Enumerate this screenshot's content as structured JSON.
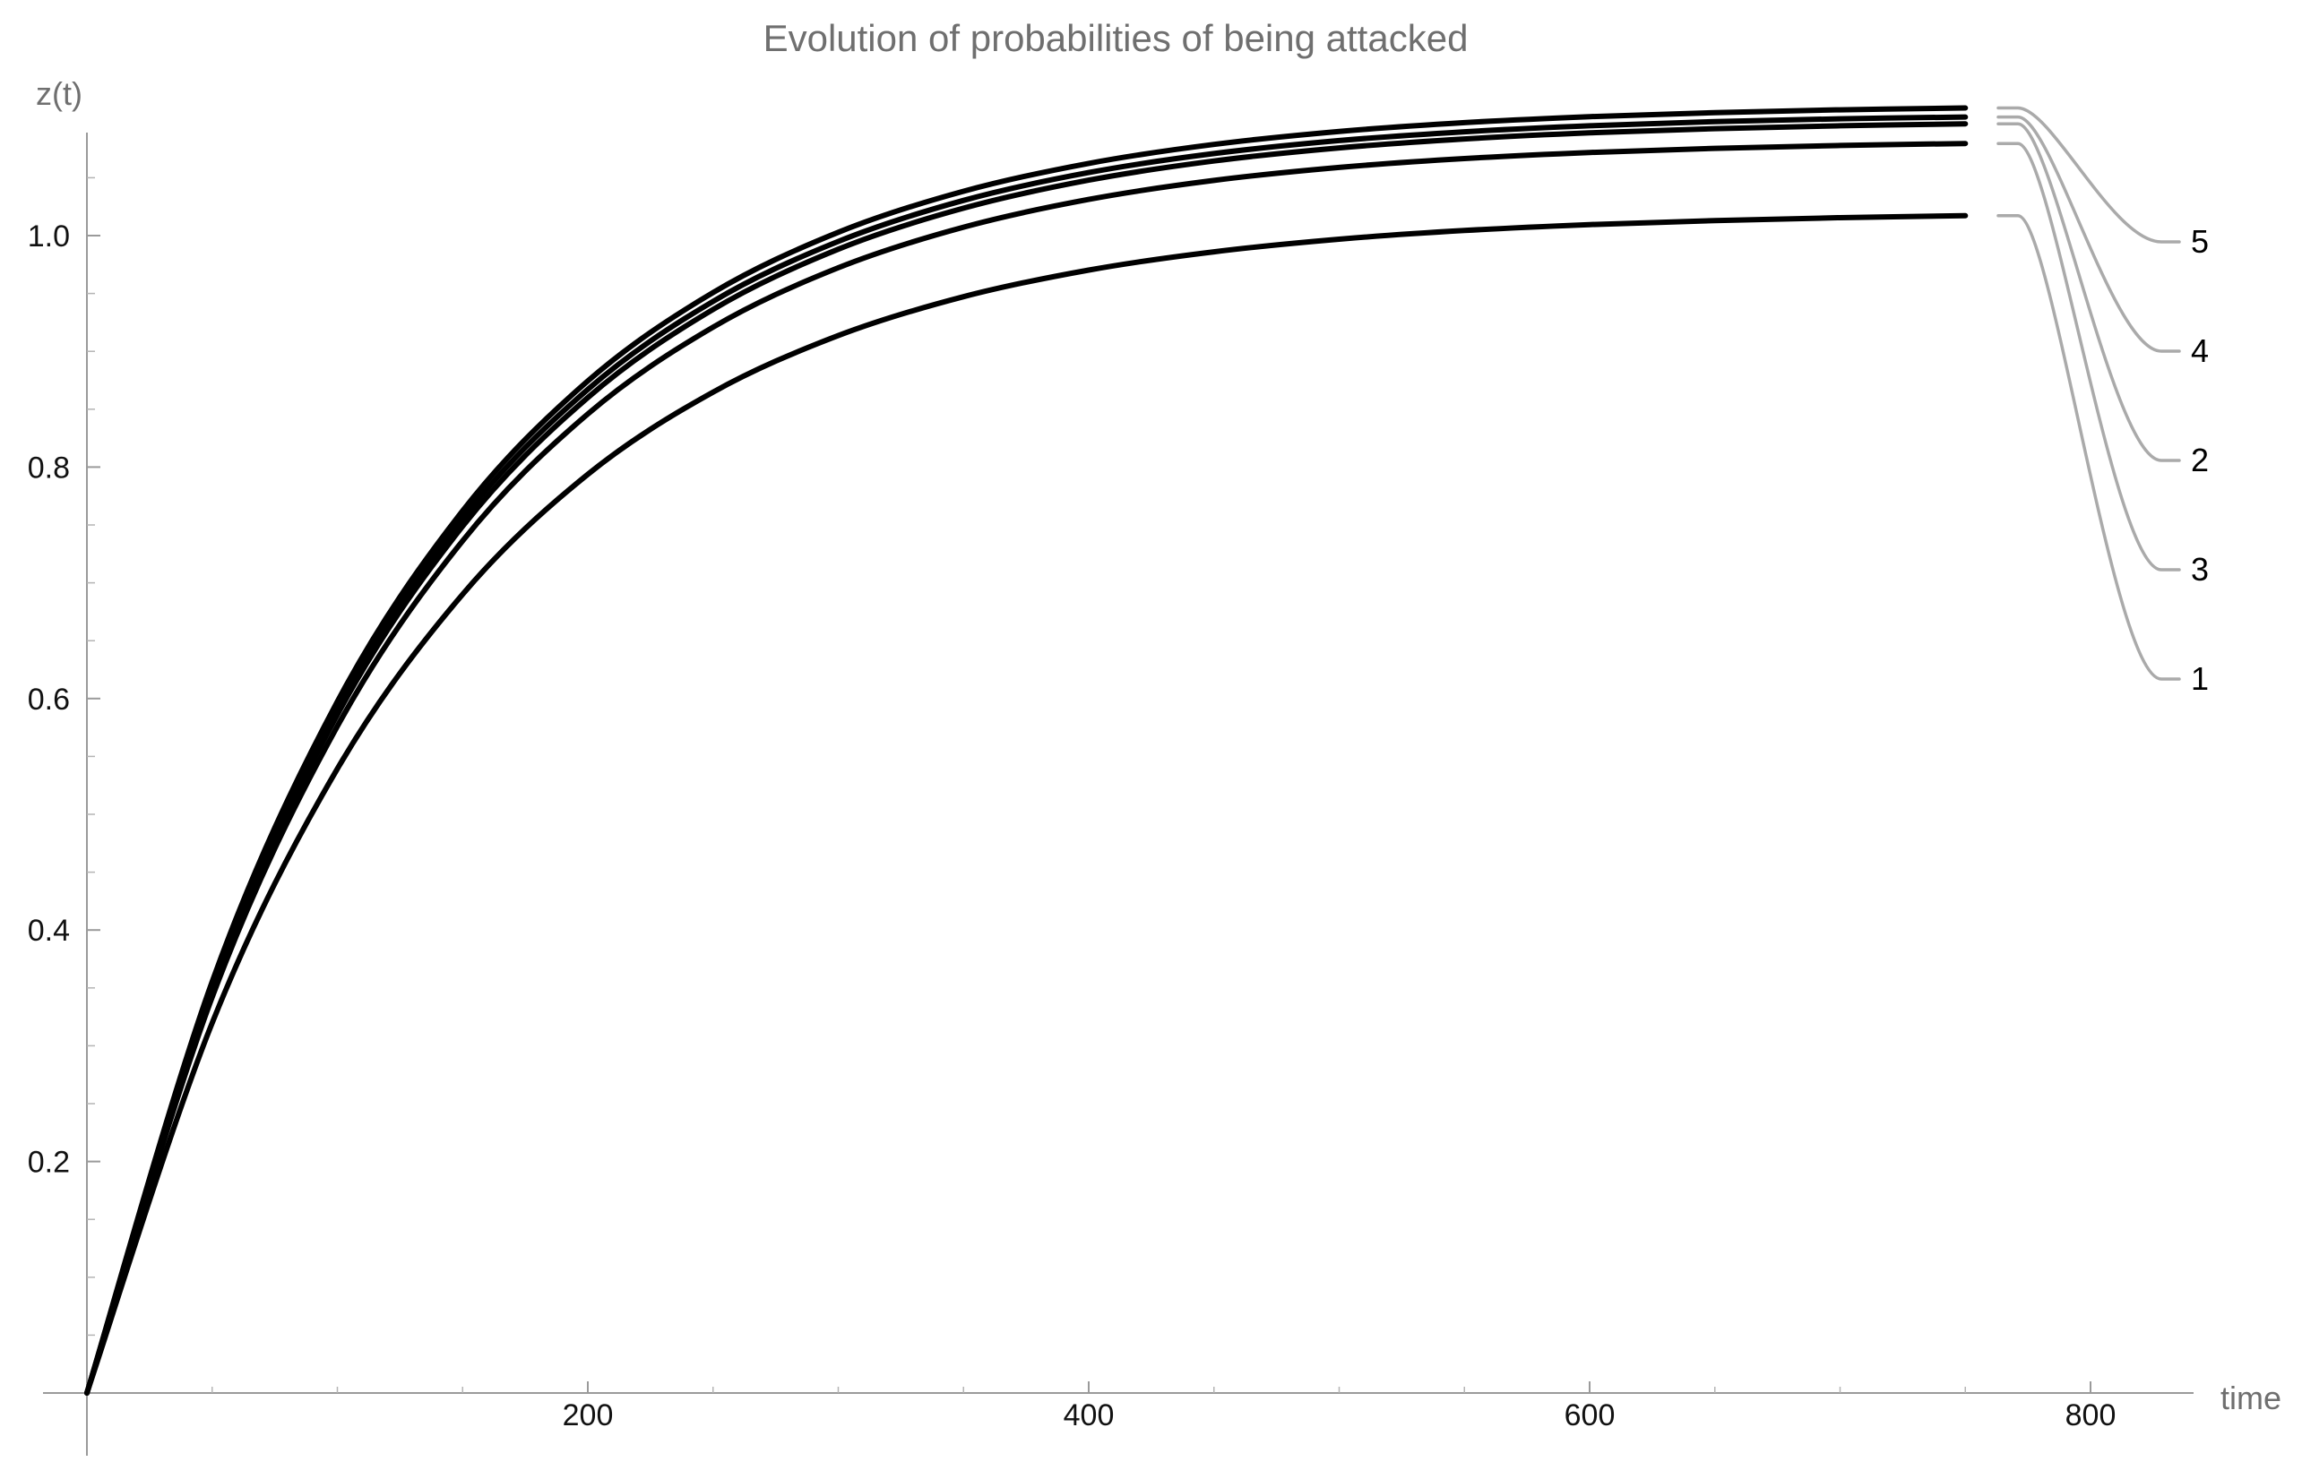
{
  "chart_data": {
    "type": "line",
    "title": "Evolution of probabilities of being attacked",
    "xlabel": "time",
    "ylabel": "z(t)",
    "xlim": [
      0,
      840
    ],
    "ylim": [
      0,
      1.09
    ],
    "x_ticks": [
      200,
      400,
      600,
      800
    ],
    "x_tick_labels": [
      "200",
      "400",
      "600",
      "800"
    ],
    "y_ticks": [
      0.2,
      0.4,
      0.6,
      0.8,
      1.0
    ],
    "y_tick_labels": [
      "0.2",
      "0.4",
      "0.6",
      "0.8",
      "1.0"
    ],
    "grid": false,
    "legend": "right-side line labels",
    "line_color": "#000000",
    "leader_color": "#aaaaaa",
    "x": [
      0,
      50,
      100,
      150,
      200,
      250,
      300,
      350,
      400,
      450,
      500,
      550,
      600,
      650,
      700,
      750
    ],
    "series": [
      {
        "name": "5",
        "values": [
          0,
          0.3554,
          0.5974,
          0.7622,
          0.8744,
          0.9508,
          1.0029,
          1.0383,
          1.0624,
          1.0788,
          1.09,
          1.0976,
          1.1028,
          1.1063,
          1.1087,
          1.1103
        ]
      },
      {
        "name": "4",
        "values": [
          0,
          0.352,
          0.592,
          0.7556,
          0.8671,
          0.9432,
          0.995,
          1.0304,
          1.0545,
          1.0709,
          1.0821,
          1.0897,
          1.0949,
          1.0985,
          1.1009,
          1.1025
        ]
      },
      {
        "name": "2",
        "values": [
          0,
          0.348,
          0.5861,
          0.7489,
          0.8601,
          0.9362,
          0.9882,
          1.0237,
          1.0479,
          1.0645,
          1.0758,
          1.0835,
          1.0888,
          1.0924,
          1.0949,
          1.0966
        ]
      },
      {
        "name": "3",
        "values": [
          0,
          0.342,
          0.5761,
          0.7363,
          0.8459,
          0.9209,
          0.9722,
          1.0073,
          1.0313,
          1.0477,
          1.0589,
          1.0666,
          1.0718,
          1.0754,
          1.0779,
          1.0796
        ]
      },
      {
        "name": "1",
        "values": [
          0,
          0.3197,
          0.5393,
          0.6901,
          0.7937,
          0.8648,
          0.9136,
          0.9472,
          0.9702,
          0.986,
          0.9969,
          1.0044,
          1.0095,
          1.013,
          1.0155,
          1.0172
        ]
      }
    ]
  }
}
